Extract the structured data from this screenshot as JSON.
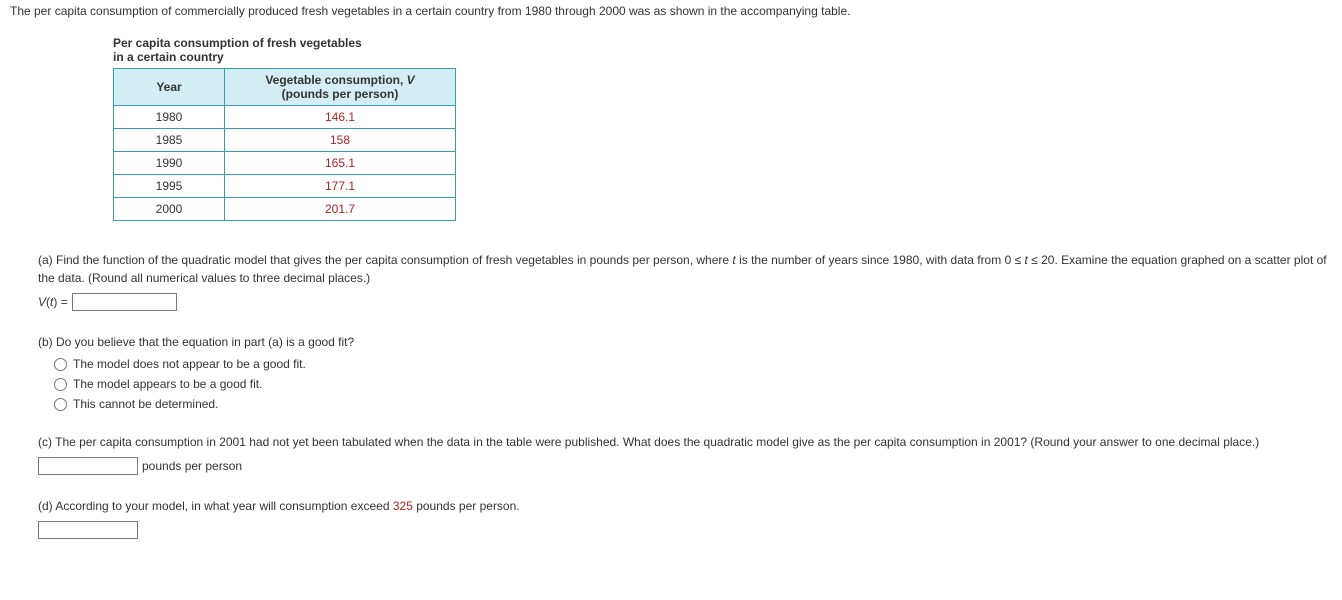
{
  "intro": "The per capita consumption of commercially produced fresh vegetables in a certain country from 1980 through 2000 was as shown in the accompanying table.",
  "table": {
    "title_line1": "Per capita consumption of fresh vegetables",
    "title_line2": "in a certain country",
    "header_year": "Year",
    "header_val_line1": "Vegetable consumption, ",
    "header_val_var": "V",
    "header_val_line2": "(pounds per person)",
    "rows": [
      {
        "year": "1980",
        "value": "146.1"
      },
      {
        "year": "1985",
        "value": "158"
      },
      {
        "year": "1990",
        "value": "165.1"
      },
      {
        "year": "1995",
        "value": "177.1"
      },
      {
        "year": "2000",
        "value": "201.7"
      }
    ]
  },
  "partA": {
    "text_before_t": "(a) Find the function of the quadratic model that gives the per capita consumption of fresh vegetables in pounds per person, where ",
    "t": "t",
    "text_after_t": " is the number of years since 1980, with data from  0 ≤ ",
    "text_after_range": " ≤ 20.  Examine the equation graphed on a scatter plot of the data. (Round all numerical values to three decimal places.)",
    "lhs_var": "V",
    "lhs_of": "(",
    "lhs_t": "t",
    "lhs_close": ") ="
  },
  "partB": {
    "prompt": "(b) Do you believe that the equation in part (a) is a good fit?",
    "opt1": "The model does not appear to be a good fit.",
    "opt2": "The model appears to be a good fit.",
    "opt3": "This cannot be determined."
  },
  "partC": {
    "text": "(c) The per capita consumption in 2001 had not yet been tabulated when the data in the table were published. What does the quadratic model give as the per capita consumption in 2001? (Round your answer to one decimal place.)",
    "unit": "pounds per person"
  },
  "partD": {
    "text_before": "(d) According to your model, in what year will consumption exceed ",
    "value": "325",
    "text_after": " pounds per person."
  }
}
